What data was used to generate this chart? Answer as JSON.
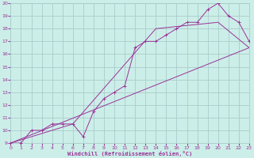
{
  "xlabel": "Windchill (Refroidissement éolien,°C)",
  "bg_color": "#cceee8",
  "grid_color": "#aacccc",
  "line_color": "#993399",
  "xlim": [
    0,
    23
  ],
  "ylim": [
    9,
    20
  ],
  "xticks": [
    0,
    1,
    2,
    3,
    4,
    5,
    6,
    7,
    8,
    9,
    10,
    11,
    12,
    13,
    14,
    15,
    16,
    17,
    18,
    19,
    20,
    21,
    22,
    23
  ],
  "yticks": [
    9,
    10,
    11,
    12,
    13,
    14,
    15,
    16,
    17,
    18,
    19,
    20
  ],
  "line1_x": [
    0,
    1,
    2,
    3,
    4,
    5,
    6,
    7,
    8,
    9,
    10,
    11,
    12,
    13,
    14,
    15,
    16,
    17,
    18,
    19,
    20,
    21,
    22,
    23
  ],
  "line1_y": [
    9.0,
    9.0,
    10.0,
    10.0,
    10.5,
    10.5,
    10.5,
    9.5,
    11.5,
    12.5,
    13.0,
    13.5,
    16.5,
    17.0,
    17.0,
    17.5,
    18.0,
    18.5,
    18.5,
    19.5,
    20.0,
    19.0,
    18.5,
    17.0
  ],
  "line2_x": [
    0,
    23
  ],
  "line2_y": [
    9.0,
    16.5
  ],
  "line3_x": [
    0,
    6,
    14,
    20,
    23
  ],
  "line3_y": [
    9.0,
    10.5,
    18.0,
    18.5,
    16.5
  ],
  "marker": "+"
}
